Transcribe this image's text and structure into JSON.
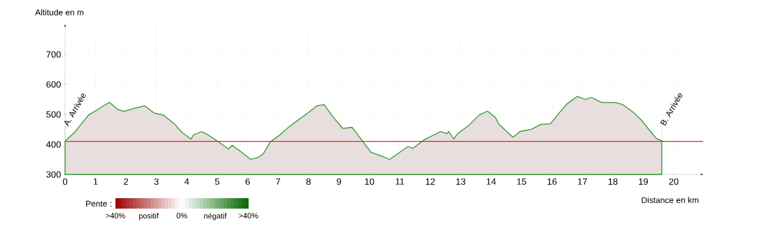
{
  "chart_data": {
    "type": "area",
    "xlabel": "Distance en km",
    "ylabel": "Altitude en m",
    "clabel": "Pente :",
    "x": [
      0,
      0.31,
      0.77,
      1.08,
      1.31,
      1.46,
      1.73,
      1.92,
      2.31,
      2.61,
      2.92,
      3.23,
      3.61,
      3.84,
      4.14,
      4.22,
      4.49,
      4.68,
      4.99,
      5.37,
      5.49,
      5.75,
      6.1,
      6.37,
      6.52,
      6.75,
      7.06,
      7.36,
      7.98,
      8.28,
      8.51,
      8.82,
      9.13,
      9.43,
      9.74,
      10.05,
      10.43,
      10.66,
      11.27,
      11.43,
      11.81,
      12.34,
      12.54,
      12.61,
      12.77,
      12.92,
      13.26,
      13.61,
      13.88,
      14.14,
      14.26,
      14.72,
      14.95,
      15.33,
      15.64,
      15.95,
      16.18,
      16.48,
      16.83,
      17.1,
      17.29,
      17.63,
      18.09,
      18.32,
      18.7,
      18.93,
      19.24,
      19.43,
      19.61
    ],
    "series": [
      {
        "color": "#2e9a2e",
        "values": [
          411,
          440,
          498,
          517,
          532,
          540,
          517,
          510,
          521,
          529,
          505,
          498,
          467,
          440,
          418,
          432,
          443,
          433,
          412,
          385,
          397,
          378,
          350,
          358,
          370,
          409,
          432,
          459,
          505,
          529,
          533,
          490,
          453,
          457,
          416,
          374,
          360,
          350,
          393,
          387,
          416,
          443,
          436,
          443,
          418,
          438,
          463,
          498,
          511,
          490,
          467,
          424,
          443,
          451,
          467,
          469,
          498,
          534,
          560,
          550,
          557,
          540,
          540,
          533,
          505,
          482,
          443,
          420,
          412
        ]
      }
    ],
    "xlim": [
      0,
      20.97
    ],
    "ylim": [
      300,
      800
    ],
    "xticks": [
      0,
      1,
      2,
      3,
      4,
      5,
      6,
      7,
      8,
      9,
      10,
      11,
      12,
      13,
      14,
      15,
      16,
      17,
      18,
      19,
      20
    ],
    "yticks": [
      300,
      400,
      500,
      600,
      700
    ],
    "grid": true,
    "marker": "none",
    "ref_lines": [
      {
        "axis": "y",
        "value": 410,
        "color": "#e8231e"
      }
    ],
    "clim": [
      40,
      -40
    ],
    "cticks": [
      {
        "value": 40,
        "label": ">40%"
      },
      {
        "value": 20,
        "label": "positif"
      },
      {
        "value": 0,
        "label": "0%"
      },
      {
        "value": -20,
        "label": "négatif"
      },
      {
        "value": -40,
        "label": ">40%"
      }
    ],
    "annotations": [
      {
        "text": "A. Arrivée",
        "x": 0,
        "y": 411
      },
      {
        "text": "B. Arrivée",
        "x": 19.61,
        "y": 412
      }
    ]
  }
}
